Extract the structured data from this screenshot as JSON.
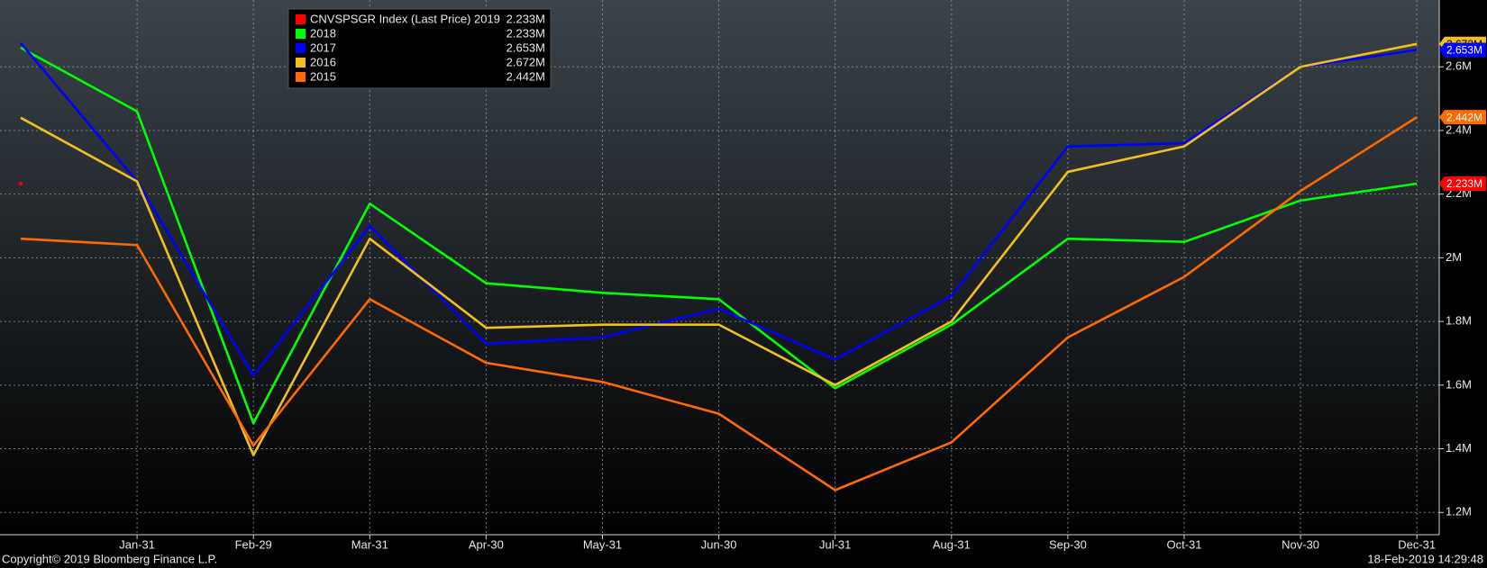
{
  "chart_data": {
    "type": "line",
    "categories": [
      null,
      "Jan-31",
      "Feb-29",
      "Mar-31",
      "Apr-30",
      "May-31",
      "Jun-30",
      "Jul-31",
      "Aug-31",
      "Sep-30",
      "Oct-31",
      "Nov-30",
      "Dec-31"
    ],
    "series": [
      {
        "name": "CNVSPSGR Index (Last Price) 2019",
        "color": "#ff0000",
        "last_price_label": "2.233M",
        "values": [
          2233000,
          null,
          null,
          null,
          null,
          null,
          null,
          null,
          null,
          null,
          null,
          null,
          null
        ]
      },
      {
        "name": "2018",
        "color": "#00ff00",
        "last_price_label": "2.233M",
        "values": [
          2660000,
          2460000,
          1480000,
          2170000,
          1920000,
          1890000,
          1870000,
          1590000,
          1790000,
          2060000,
          2050000,
          2180000,
          2233000
        ]
      },
      {
        "name": "2017",
        "color": "#0000ff",
        "last_price_label": "2.653M",
        "values": [
          2675000,
          2240000,
          1630000,
          2100000,
          1730000,
          1750000,
          1840000,
          1680000,
          1880000,
          2350000,
          2360000,
          2600000,
          2653000
        ]
      },
      {
        "name": "2016",
        "color": "#f0c020",
        "last_price_label": "2.672M",
        "values": [
          2440000,
          2240000,
          1380000,
          2060000,
          1780000,
          1790000,
          1790000,
          1600000,
          1800000,
          2270000,
          2350000,
          2600000,
          2672000
        ]
      },
      {
        "name": "2015",
        "color": "#ff6a00",
        "last_price_label": "2.442M",
        "values": [
          2060000,
          2040000,
          1410000,
          1870000,
          1670000,
          1610000,
          1510000,
          1270000,
          1420000,
          1750000,
          1940000,
          2210000,
          2442000
        ]
      }
    ],
    "ylim": [
      1130000,
      2810000
    ],
    "yticks": [
      {
        "value": 1200000,
        "label": "1.2M"
      },
      {
        "value": 1400000,
        "label": "1.4M"
      },
      {
        "value": 1600000,
        "label": "1.6M"
      },
      {
        "value": 1800000,
        "label": "1.8M"
      },
      {
        "value": 2000000,
        "label": "2M"
      },
      {
        "value": 2200000,
        "label": "2.2M"
      },
      {
        "value": 2400000,
        "label": "2.4M"
      },
      {
        "value": 2600000,
        "label": "2.6M"
      }
    ],
    "grid": true,
    "legend": "top-left",
    "copyright": "Copyright© 2019 Bloomberg Finance L.P.",
    "timestamp": "18-Feb-2019 14:29:48"
  }
}
